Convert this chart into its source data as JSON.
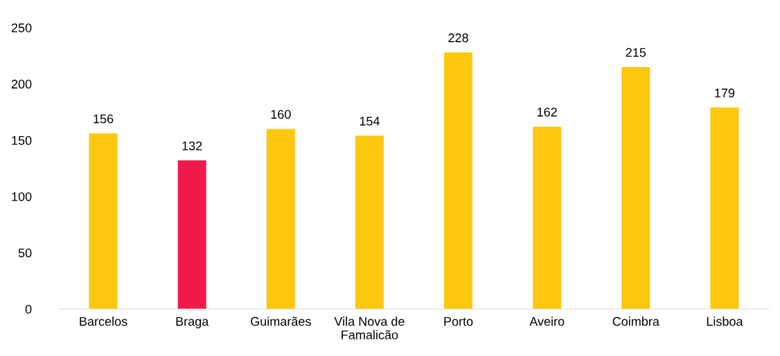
{
  "chart_data": {
    "type": "bar",
    "categories": [
      "Barcelos",
      "Braga",
      "Guimarães",
      "Vila Nova de\nFamalicão",
      "Porto",
      "Aveiro",
      "Coimbra",
      "Lisboa"
    ],
    "values": [
      156,
      132,
      160,
      154,
      228,
      162,
      215,
      179
    ],
    "colors": [
      "#fdc80d",
      "#ef1a4a",
      "#fdc80d",
      "#fdc80d",
      "#fdc80d",
      "#fdc80d",
      "#fdc80d",
      "#fdc80d"
    ],
    "ylim": [
      0,
      250
    ],
    "yticks": [
      0,
      50,
      100,
      150,
      200,
      250
    ],
    "data_labels": true,
    "grid": false,
    "legend": false
  }
}
